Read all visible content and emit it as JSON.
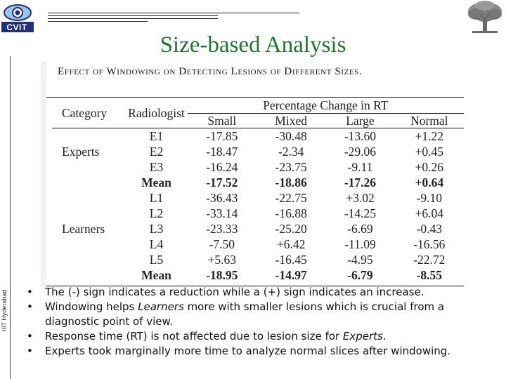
{
  "header": {
    "logo_text": "CVIT",
    "side_text": "IIIT Hyderabad"
  },
  "title": "Size-based Analysis",
  "table": {
    "caption": "Effect of Windowing on Detecting Lesions of Different Sizes.",
    "group_header": "Percentage Change in RT",
    "col_category": "Category",
    "col_radiologist": "Radiologist",
    "columns": [
      "Small",
      "Mixed",
      "Large",
      "Normal"
    ],
    "rows": [
      {
        "category": "",
        "radiologist": "E1",
        "values": [
          "-17.85",
          "-30.48",
          "-13.60",
          "+1.22"
        ]
      },
      {
        "category": "Experts",
        "radiologist": "E2",
        "values": [
          "-18.47",
          "-2.34",
          "-29.06",
          "+0.45"
        ]
      },
      {
        "category": "",
        "radiologist": "E3",
        "values": [
          "-16.24",
          "-23.75",
          "-9.11",
          "+0.26"
        ]
      },
      {
        "category": "",
        "radiologist": "Mean",
        "values": [
          "-17.52",
          "-18.86",
          "-17.26",
          "+0.64"
        ]
      },
      {
        "category": "",
        "radiologist": "L1",
        "values": [
          "-36.43",
          "-22.75",
          "+3.02",
          "-9.10"
        ]
      },
      {
        "category": "",
        "radiologist": "L2",
        "values": [
          "-33.14",
          "-16.88",
          "-14.25",
          "+6.04"
        ]
      },
      {
        "category": "Learners",
        "radiologist": "L3",
        "values": [
          "-23.33",
          "-25.20",
          "-6.69",
          "-0.43"
        ]
      },
      {
        "category": "",
        "radiologist": "L4",
        "values": [
          "-7.50",
          "+6.42",
          "-11.09",
          "-16.56"
        ]
      },
      {
        "category": "",
        "radiologist": "L5",
        "values": [
          "+5.63",
          "-16.45",
          "-4.95",
          "-22.72"
        ]
      },
      {
        "category": "",
        "radiologist": "Mean",
        "values": [
          "-18.95",
          "-14.97",
          "-6.79",
          "-8.55"
        ]
      }
    ]
  },
  "notes": [
    {
      "parts": [
        {
          "text": "The (-) sign indicates a reduction while a (+) sign indicates an increase.",
          "italic": false
        }
      ]
    },
    {
      "parts": [
        {
          "text": "Windowing helps ",
          "italic": false
        },
        {
          "text": "Learners",
          "italic": true
        },
        {
          "text": " more with smaller lesions which is crucial from a diagnostic point of view.",
          "italic": false
        }
      ]
    },
    {
      "parts": [
        {
          "text": "Response time (RT) is not affected due to lesion size for ",
          "italic": false
        },
        {
          "text": "Experts",
          "italic": true
        },
        {
          "text": ".",
          "italic": false
        }
      ]
    },
    {
      "parts": [
        {
          "text": "Experts took marginally more time to analyze normal slices after windowing.",
          "italic": false
        }
      ]
    }
  ],
  "colors": {
    "title": "#1a7a2a",
    "logo": "#1f2f7a"
  }
}
